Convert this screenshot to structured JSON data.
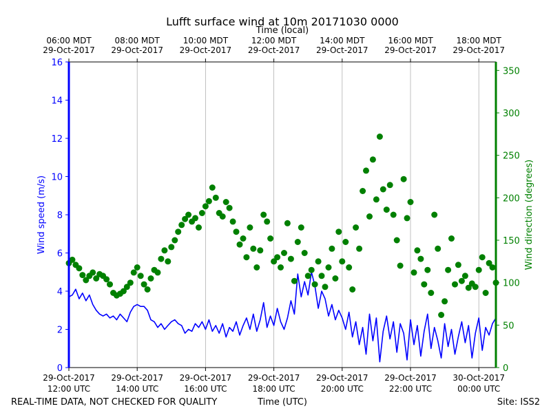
{
  "chart_data": {
    "type": "line",
    "title": "Lufft surface wind at 10m 20171030 0000",
    "top_axis_label": "Time (local)",
    "xlabel": "Time (UTC)",
    "ylabel_left": "Wind speed (m/s)",
    "ylabel_right": "Wind direction (degrees)",
    "footer_left": "REAL-TIME DATA, NOT CHECKED FOR QUALITY",
    "footer_right": "Site: ISS2",
    "x_range_hours": [
      12.0,
      24.5
    ],
    "ylim_left": [
      0,
      16
    ],
    "ylim_right": [
      0,
      360
    ],
    "grid": "vertical",
    "left_ticks": [
      "0",
      "2",
      "4",
      "6",
      "8",
      "10",
      "12",
      "14",
      "16"
    ],
    "right_ticks": [
      "0",
      "50",
      "100",
      "150",
      "200",
      "250",
      "300",
      "350"
    ],
    "bottom_ticks": [
      {
        "hour": 12,
        "line1": "29-Oct-2017",
        "line2": "12:00 UTC"
      },
      {
        "hour": 14,
        "line1": "29-Oct-2017",
        "line2": "14:00 UTC"
      },
      {
        "hour": 16,
        "line1": "29-Oct-2017",
        "line2": "16:00 UTC"
      },
      {
        "hour": 18,
        "line1": "29-Oct-2017",
        "line2": "18:00 UTC"
      },
      {
        "hour": 20,
        "line1": "29-Oct-2017",
        "line2": "20:00 UTC"
      },
      {
        "hour": 22,
        "line1": "29-Oct-2017",
        "line2": "22:00 UTC"
      },
      {
        "hour": 24,
        "line1": "30-Oct-2017",
        "line2": "00:00 UTC"
      }
    ],
    "top_ticks": [
      {
        "hour": 12,
        "line1": "06:00 MDT",
        "line2": "29-Oct-2017"
      },
      {
        "hour": 14,
        "line1": "08:00 MDT",
        "line2": "29-Oct-2017"
      },
      {
        "hour": 16,
        "line1": "10:00 MDT",
        "line2": "29-Oct-2017"
      },
      {
        "hour": 18,
        "line1": "12:00 MDT",
        "line2": "29-Oct-2017"
      },
      {
        "hour": 20,
        "line1": "14:00 MDT",
        "line2": "29-Oct-2017"
      },
      {
        "hour": 22,
        "line1": "16:00 MDT",
        "line2": "29-Oct-2017"
      },
      {
        "hour": 24,
        "line1": "18:00 MDT",
        "line2": "29-Oct-2017"
      }
    ],
    "series": [
      {
        "name": "Wind speed",
        "axis": "left",
        "style": "line",
        "color": "#0000ff",
        "segments": [
          {
            "x": [
              12.0,
              12.1,
              12.2,
              12.3,
              12.4,
              12.5,
              12.6,
              12.7,
              12.8,
              12.9,
              13.0,
              13.1,
              13.2,
              13.3,
              13.4,
              13.5,
              13.6,
              13.7,
              13.8,
              13.9,
              14.0,
              14.1,
              14.2,
              14.3,
              14.4,
              14.5,
              14.6,
              14.7,
              14.8,
              14.9,
              15.0,
              15.1,
              15.2,
              15.3,
              15.4,
              15.5,
              15.6,
              15.7,
              15.8,
              15.9,
              16.0,
              16.1,
              16.2,
              16.3,
              16.4,
              16.5,
              16.6,
              16.7,
              16.8,
              16.9,
              17.0,
              17.1,
              17.2,
              17.3,
              17.4,
              17.5,
              17.6,
              17.7,
              17.8,
              17.9,
              18.0,
              18.1,
              18.2,
              18.3,
              18.4,
              18.5,
              18.6,
              18.7,
              18.8,
              18.9,
              19.0,
              19.1,
              19.2,
              19.3,
              19.4,
              19.5,
              19.6,
              19.7,
              19.8,
              19.9,
              20.0,
              20.1,
              20.2,
              20.3,
              20.4,
              20.5,
              20.6,
              20.7,
              20.8,
              20.9,
              21.0,
              21.1,
              21.2,
              21.3,
              21.4,
              21.5,
              21.6,
              21.7,
              21.8,
              21.9,
              22.0,
              22.1,
              22.2,
              22.3,
              22.4,
              22.5,
              22.6,
              22.7,
              22.8,
              22.9,
              23.0,
              23.1,
              23.2,
              23.3,
              23.4,
              23.5,
              23.6,
              23.7,
              23.8,
              23.9,
              24.0,
              24.1,
              24.2,
              24.3,
              24.4,
              24.5
            ],
            "y": [
              3.7,
              3.8,
              4.1,
              3.6,
              3.9,
              3.5,
              3.8,
              3.3,
              3.0,
              2.8,
              2.7,
              2.8,
              2.6,
              2.7,
              2.5,
              2.8,
              2.6,
              2.4,
              2.9,
              3.2,
              3.3,
              3.2,
              3.2,
              3.0,
              2.5,
              2.4,
              2.1,
              2.3,
              2.0,
              2.2,
              2.4,
              2.5,
              2.3,
              2.2,
              1.8,
              2.0,
              1.9,
              2.3,
              2.1,
              2.4,
              2.0,
              2.5,
              1.9,
              2.2,
              1.8,
              2.3,
              1.6,
              2.1,
              1.9,
              2.4,
              1.7,
              2.2,
              2.6,
              2.0,
              2.8,
              1.9,
              2.5,
              3.4,
              2.1,
              2.7,
              2.2,
              3.1,
              2.4,
              2.0,
              2.6,
              3.5,
              2.8,
              4.9,
              3.7,
              4.5,
              3.8,
              5.0,
              4.3,
              3.1,
              4.0,
              3.6,
              2.7,
              3.3,
              2.5,
              3.0,
              2.6,
              2.0,
              2.9,
              1.6,
              2.4,
              1.2,
              2.1,
              0.7,
              2.8,
              1.4,
              2.6,
              0.3,
              1.9,
              2.7,
              1.5,
              2.4,
              0.8,
              2.3,
              1.8,
              0.4,
              2.5,
              1.2,
              2.2,
              0.6,
              1.9,
              2.8,
              1.0,
              2.1,
              1.4,
              0.5,
              2.3,
              1.1,
              2.0,
              0.7,
              1.6,
              2.4,
              1.3,
              2.2,
              0.5,
              1.8,
              2.6,
              0.9,
              2.1,
              1.7,
              2.3,
              2.6
            ]
          }
        ]
      },
      {
        "name": "Wind direction",
        "axis": "right",
        "style": "markers",
        "color": "#008000",
        "x": [
          12.0,
          12.1,
          12.2,
          12.3,
          12.4,
          12.5,
          12.6,
          12.7,
          12.8,
          12.9,
          13.0,
          13.1,
          13.2,
          13.3,
          13.4,
          13.5,
          13.6,
          13.7,
          13.8,
          13.9,
          14.0,
          14.1,
          14.2,
          14.3,
          14.4,
          14.5,
          14.6,
          14.7,
          14.8,
          14.9,
          15.0,
          15.1,
          15.2,
          15.3,
          15.4,
          15.5,
          15.6,
          15.7,
          15.8,
          15.9,
          16.0,
          16.1,
          16.2,
          16.3,
          16.4,
          16.5,
          16.6,
          16.7,
          16.8,
          16.9,
          17.0,
          17.1,
          17.2,
          17.3,
          17.4,
          17.5,
          17.6,
          17.7,
          17.8,
          17.9,
          18.0,
          18.1,
          18.2,
          18.3,
          18.4,
          18.5,
          18.6,
          18.7,
          18.8,
          18.9,
          19.0,
          19.1,
          19.2,
          19.3,
          19.4,
          19.5,
          19.6,
          19.7,
          19.8,
          19.9,
          20.0,
          20.1,
          20.2,
          20.3,
          20.4,
          20.5,
          20.6,
          20.7,
          20.8,
          20.9,
          21.0,
          21.1,
          21.2,
          21.3,
          21.4,
          21.5,
          21.6,
          21.7,
          21.8,
          21.9,
          22.0,
          22.1,
          22.2,
          22.3,
          22.4,
          22.5,
          22.6,
          22.7,
          22.8,
          22.9,
          23.0,
          23.1,
          23.2,
          23.3,
          23.4,
          23.5,
          23.6,
          23.7,
          23.8,
          23.9,
          24.0,
          24.1,
          24.2,
          24.3,
          24.4,
          24.5
        ],
        "y": [
          123,
          127,
          121,
          117,
          109,
          103,
          108,
          112,
          105,
          110,
          108,
          104,
          98,
          88,
          85,
          87,
          90,
          95,
          100,
          112,
          118,
          108,
          98,
          92,
          105,
          115,
          112,
          128,
          138,
          125,
          142,
          150,
          160,
          168,
          175,
          180,
          172,
          176,
          165,
          182,
          190,
          196,
          212,
          200,
          182,
          178,
          195,
          188,
          172,
          160,
          145,
          152,
          130,
          165,
          140,
          118,
          138,
          180,
          172,
          152,
          125,
          130,
          118,
          135,
          170,
          128,
          102,
          148,
          165,
          135,
          108,
          115,
          98,
          125,
          108,
          95,
          118,
          140,
          105,
          160,
          125,
          148,
          118,
          92,
          165,
          140,
          208,
          232,
          178,
          245,
          198,
          272,
          210,
          186,
          215,
          180,
          150,
          120,
          222,
          176,
          195,
          112,
          138,
          128,
          98,
          115,
          88,
          180,
          140,
          62,
          78,
          115,
          152,
          98,
          121,
          102,
          108,
          94,
          99,
          95,
          115,
          130,
          88,
          123,
          118,
          100
        ]
      }
    ]
  }
}
